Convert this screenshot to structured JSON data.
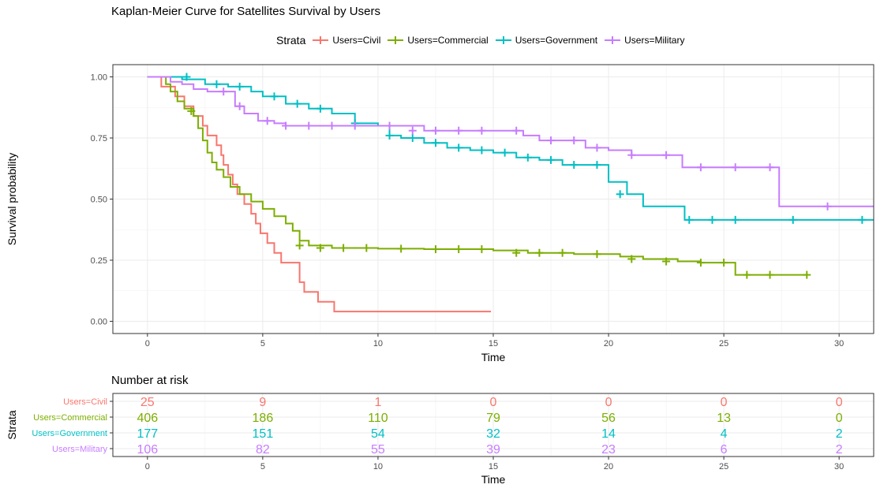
{
  "chart_data": {
    "type": "line",
    "title": "Kaplan-Meier Curve for Satellites Survival by Users",
    "xlabel": "Time",
    "ylabel": "Survival probability",
    "xlim": [
      -1.5,
      31.5
    ],
    "ylim": [
      -0.05,
      1.05
    ],
    "x_ticks": [
      "0",
      "5",
      "10",
      "15",
      "20",
      "25",
      "30"
    ],
    "x_tick_values": [
      0,
      5,
      10,
      15,
      20,
      25,
      30
    ],
    "y_ticks": [
      "0.00",
      "0.25",
      "0.50",
      "0.75",
      "1.00"
    ],
    "y_tick_values": [
      0,
      0.25,
      0.5,
      0.75,
      1.0
    ],
    "grid": true,
    "legend": {
      "title": "Strata",
      "position": "top",
      "entries": [
        "Users=Civil",
        "Users=Commercial",
        "Users=Government",
        "Users=Military"
      ]
    },
    "series": [
      {
        "name": "Users=Civil",
        "color": "#F8766D",
        "x": [
          0,
          0.6,
          1.2,
          1.6,
          2.0,
          2.4,
          2.6,
          3.0,
          3.2,
          3.3,
          3.5,
          3.7,
          3.9,
          4.2,
          4.5,
          4.7,
          4.9,
          5.2,
          5.5,
          5.8,
          6.6,
          6.8,
          7.4,
          7.6,
          8.1,
          14.9
        ],
        "y": [
          1.0,
          0.96,
          0.92,
          0.88,
          0.84,
          0.8,
          0.76,
          0.72,
          0.68,
          0.64,
          0.6,
          0.56,
          0.52,
          0.48,
          0.44,
          0.4,
          0.36,
          0.32,
          0.28,
          0.24,
          0.16,
          0.12,
          0.08,
          0.08,
          0.04,
          0.04
        ],
        "censored_x": [],
        "censored_y": []
      },
      {
        "name": "Users=Commercial",
        "color": "#7CAE00",
        "x": [
          0,
          0.8,
          1.0,
          1.3,
          1.6,
          2.0,
          2.2,
          2.4,
          2.6,
          2.8,
          3.0,
          3.3,
          3.6,
          4.0,
          4.5,
          5.0,
          5.5,
          6.0,
          6.3,
          6.6,
          7.0,
          8.0,
          10.0,
          12.0,
          15.0,
          16.5,
          18.5,
          20.5,
          21.5,
          23.0,
          24.0,
          25.5,
          28.6
        ],
        "y": [
          1.0,
          0.97,
          0.94,
          0.9,
          0.87,
          0.84,
          0.79,
          0.74,
          0.69,
          0.65,
          0.62,
          0.59,
          0.55,
          0.52,
          0.49,
          0.46,
          0.43,
          0.4,
          0.37,
          0.33,
          0.31,
          0.3,
          0.297,
          0.295,
          0.29,
          0.28,
          0.275,
          0.265,
          0.255,
          0.245,
          0.24,
          0.19,
          0.19
        ],
        "censored_x": [
          1.9,
          6.6,
          7.5,
          8.5,
          9.5,
          11.0,
          12.5,
          13.5,
          14.5,
          16.0,
          17.0,
          18.0,
          19.5,
          21.0,
          22.5,
          24.0,
          25.0,
          26.0,
          27.0,
          28.6
        ],
        "censored_y": [
          0.86,
          0.31,
          0.3,
          0.3,
          0.3,
          0.297,
          0.295,
          0.295,
          0.295,
          0.28,
          0.28,
          0.28,
          0.275,
          0.255,
          0.245,
          0.24,
          0.24,
          0.19,
          0.19,
          0.19
        ]
      },
      {
        "name": "Users=Government",
        "color": "#00BFC4",
        "x": [
          0,
          1.5,
          2.5,
          3.5,
          4.5,
          5.0,
          6.0,
          7.0,
          8.0,
          9.0,
          10.0,
          10.5,
          11.0,
          12.0,
          13.0,
          14.0,
          15.0,
          16.0,
          17.0,
          18.0,
          19.0,
          20.0,
          20.8,
          21.5,
          23.0,
          23.3,
          31.5
        ],
        "y": [
          1.0,
          0.99,
          0.97,
          0.96,
          0.94,
          0.92,
          0.89,
          0.87,
          0.85,
          0.81,
          0.8,
          0.76,
          0.75,
          0.73,
          0.71,
          0.7,
          0.69,
          0.67,
          0.66,
          0.64,
          0.64,
          0.57,
          0.52,
          0.47,
          0.47,
          0.415,
          0.415
        ],
        "censored_x": [
          1.7,
          3.0,
          4.0,
          5.5,
          6.5,
          7.5,
          9.0,
          10.5,
          11.5,
          12.5,
          13.5,
          14.5,
          15.5,
          16.5,
          17.5,
          18.5,
          19.5,
          20.5,
          23.5,
          24.5,
          25.5,
          28.0,
          31.0
        ],
        "censored_y": [
          1.0,
          0.97,
          0.96,
          0.92,
          0.89,
          0.87,
          0.81,
          0.76,
          0.75,
          0.73,
          0.71,
          0.7,
          0.69,
          0.67,
          0.66,
          0.64,
          0.64,
          0.52,
          0.415,
          0.415,
          0.415,
          0.415,
          0.415
        ]
      },
      {
        "name": "Users=Military",
        "color": "#C77CFF",
        "x": [
          0,
          1.0,
          1.5,
          2.0,
          2.6,
          3.8,
          4.2,
          4.8,
          5.5,
          6.0,
          8.0,
          10.0,
          12.0,
          15.0,
          16.3,
          17.0,
          19.0,
          20.0,
          21.0,
          23.2,
          27.4,
          31.5
        ],
        "y": [
          1.0,
          0.98,
          0.97,
          0.95,
          0.94,
          0.88,
          0.85,
          0.82,
          0.81,
          0.8,
          0.8,
          0.8,
          0.78,
          0.78,
          0.76,
          0.74,
          0.71,
          0.7,
          0.68,
          0.63,
          0.47,
          0.47
        ],
        "censored_x": [
          3.3,
          4.0,
          5.2,
          6.0,
          7.0,
          8.0,
          9.0,
          10.5,
          11.5,
          12.5,
          13.5,
          14.5,
          16.0,
          17.5,
          18.5,
          19.5,
          21.0,
          22.5,
          24.0,
          25.5,
          27.0,
          29.5
        ],
        "censored_y": [
          0.94,
          0.88,
          0.82,
          0.8,
          0.8,
          0.8,
          0.8,
          0.8,
          0.78,
          0.78,
          0.78,
          0.78,
          0.78,
          0.74,
          0.74,
          0.71,
          0.68,
          0.68,
          0.63,
          0.63,
          0.63,
          0.47
        ]
      }
    ],
    "risk_table": {
      "title": "Number at risk",
      "xlabel": "Time",
      "ylabel": "Strata",
      "times": [
        0,
        5,
        10,
        15,
        20,
        25,
        30
      ],
      "rows": [
        {
          "label": "Users=Civil",
          "color": "#F8766D",
          "values": [
            "25",
            "9",
            "1",
            "0",
            "0",
            "0",
            "0"
          ]
        },
        {
          "label": "Users=Commercial",
          "color": "#7CAE00",
          "values": [
            "406",
            "186",
            "110",
            "79",
            "56",
            "13",
            "0"
          ]
        },
        {
          "label": "Users=Government",
          "color": "#00BFC4",
          "values": [
            "177",
            "151",
            "54",
            "32",
            "14",
            "4",
            "2"
          ]
        },
        {
          "label": "Users=Military",
          "color": "#C77CFF",
          "values": [
            "106",
            "82",
            "55",
            "39",
            "23",
            "6",
            "2"
          ]
        }
      ]
    }
  }
}
